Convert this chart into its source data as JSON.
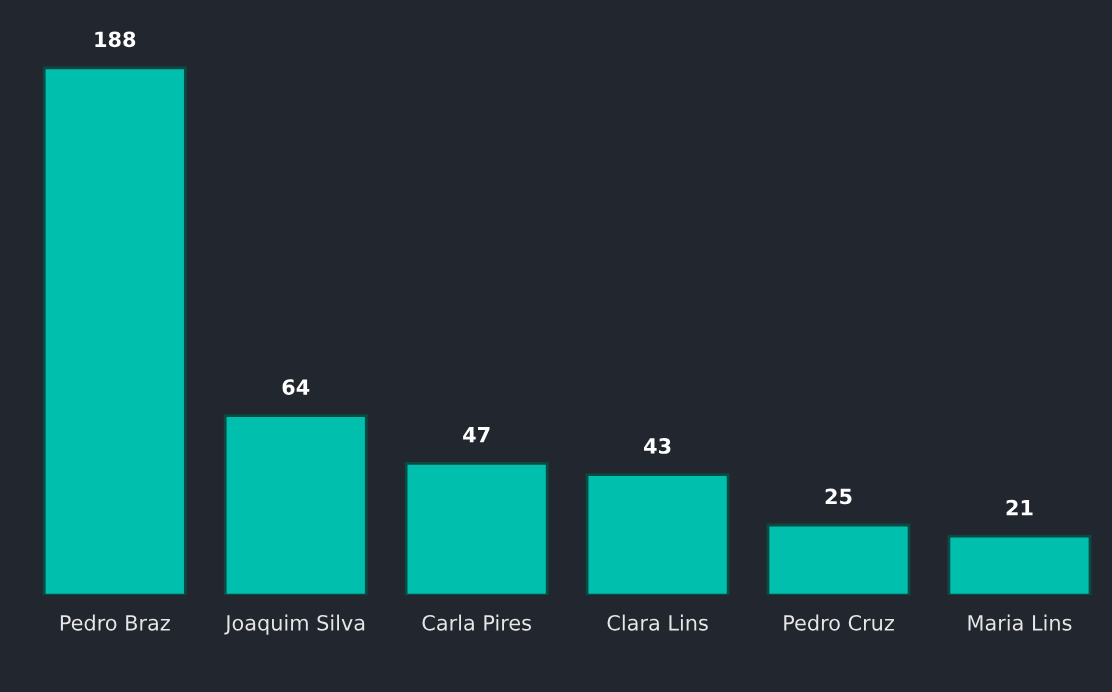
{
  "chart_data": {
    "type": "bar",
    "categories": [
      "Pedro Braz",
      "Joaquim Silva",
      "Carla Pires",
      "Clara Lins",
      "Pedro Cruz",
      "Maria Lins"
    ],
    "values": [
      188,
      64,
      47,
      43,
      25,
      21
    ],
    "color": "#00bfad",
    "data_labels": true,
    "grid": false,
    "legend": false
  }
}
